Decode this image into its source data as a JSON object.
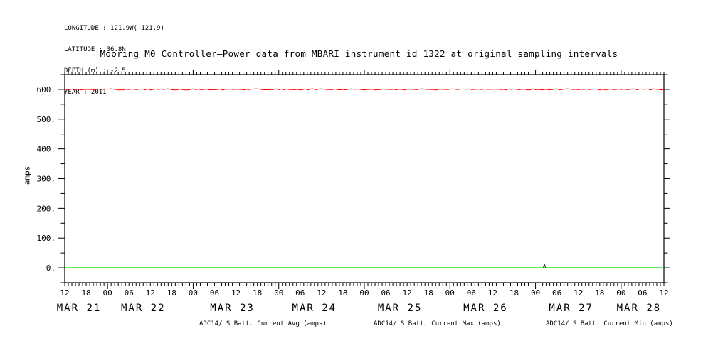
{
  "header": {
    "lines": [
      "LONGITUDE : 121.9W(-121.9)",
      "LATITUDE : 36.8N",
      "DEPTH (m) : -2.5",
      "YEAR : 2011"
    ]
  },
  "chart_data": {
    "type": "line",
    "title": "Mooring M0 Controller–Power data from MBARI instrument id 1322 at original sampling intervals",
    "xlabel": "",
    "ylabel": "amps",
    "ylim": [
      -50,
      650
    ],
    "y_major_tick_values": [
      0,
      100,
      200,
      300,
      400,
      500,
      600
    ],
    "y_major_tick_labels": [
      "0.",
      "100.",
      "200.",
      "300.",
      "400.",
      "500.",
      "600."
    ],
    "y_minor_tick_step": 50,
    "x_range_description": "2011-03-21 12:00 to 2011-03-28 12:00, minor ticks every hour",
    "x_total_hours": 168,
    "x_minor_tick_hours": 1,
    "x_label_step_hours": 6,
    "x_hour_labels": [
      "12",
      "18",
      "00",
      "06",
      "12",
      "18",
      "00",
      "06",
      "12",
      "18",
      "00",
      "06",
      "12",
      "18",
      "00",
      "06",
      "12",
      "18",
      "00",
      "06",
      "12",
      "18",
      "00",
      "06",
      "12",
      "18",
      "00",
      "06",
      "12"
    ],
    "x_major_tick_hours": [
      12,
      36,
      60,
      84,
      108,
      132,
      156
    ],
    "x_day_labels": [
      {
        "label": "MAR 21",
        "center_hour": 4
      },
      {
        "label": "MAR 22",
        "center_hour": 22
      },
      {
        "label": "MAR 23",
        "center_hour": 47
      },
      {
        "label": "MAR 24",
        "center_hour": 70
      },
      {
        "label": "MAR 25",
        "center_hour": 94
      },
      {
        "label": "MAR 26",
        "center_hour": 118
      },
      {
        "label": "MAR 27",
        "center_hour": 142
      },
      {
        "label": "MAR 28",
        "center_hour": 161
      }
    ],
    "grid": false,
    "legend_position": "bottom",
    "series": [
      {
        "name": "ADC14/ S Batt. Current Avg (amps)",
        "color": "#000000",
        "style": "constant",
        "value_amps": 0,
        "spike": {
          "hour_offset": 134.5,
          "peak_amps": 11
        }
      },
      {
        "name": "ADC14/ S Batt. Current Max (amps)",
        "color": "#ff0000",
        "style": "constant-with-noise",
        "value_amps": 600,
        "noise_amps": 2
      },
      {
        "name": "ADC14/ S Batt. Current Min (amps)",
        "color": "#00e000",
        "style": "constant",
        "value_amps": 0
      }
    ]
  }
}
